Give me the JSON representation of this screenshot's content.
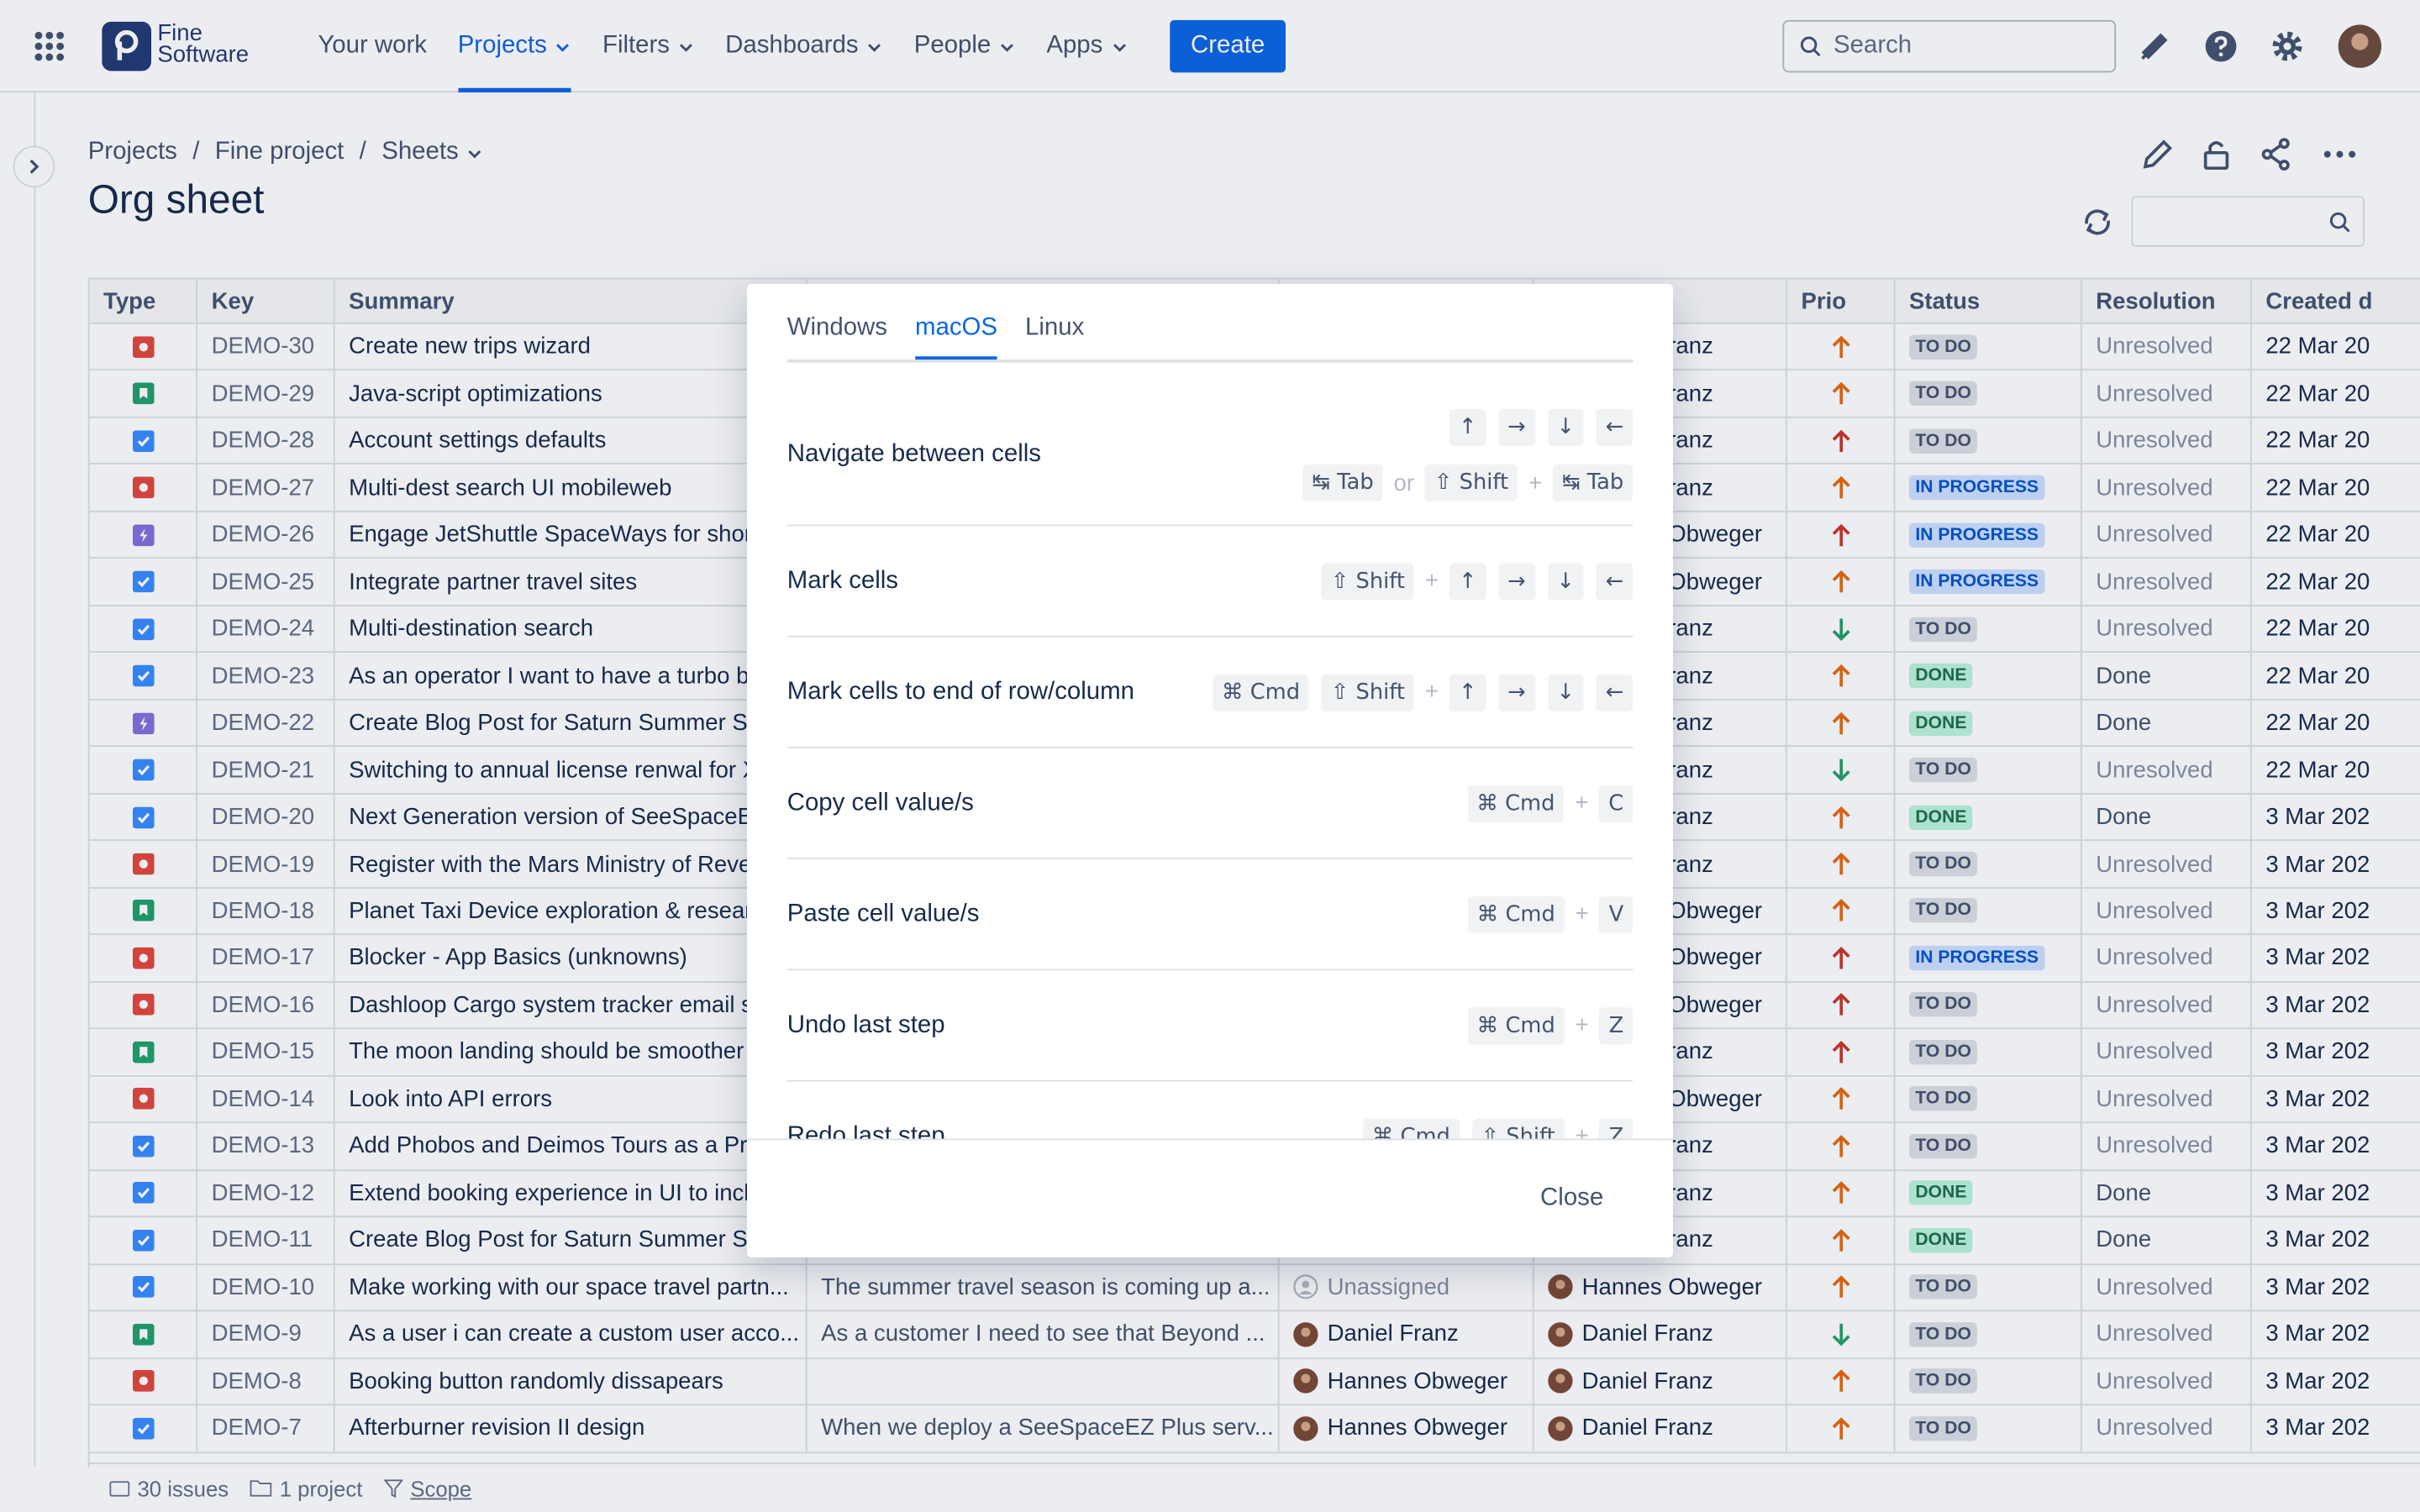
{
  "nav": {
    "logo": {
      "line1": "Fine",
      "line2": "Software"
    },
    "items": [
      "Your work",
      "Projects",
      "Filters",
      "Dashboards",
      "People",
      "Apps"
    ],
    "active": 1,
    "create": "Create",
    "search": "Search"
  },
  "breadcrumbs": [
    "Projects",
    "Fine project",
    "Sheets"
  ],
  "breadcrumb_separator": "/",
  "title": "Org sheet",
  "table": {
    "headers": {
      "type": "Type",
      "key": "Key",
      "summary": "Summary",
      "prio": "Prio",
      "status": "Status",
      "resolution": "Resolution",
      "created": "Created d"
    },
    "rows": [
      {
        "key": "DEMO-30",
        "type": "bug",
        "summary": "Create new trips wizard",
        "reporter": "Daniel Franz",
        "prio": "medium",
        "status": "TO DO",
        "resolution": "Unresolved",
        "created": "22 Mar 20"
      },
      {
        "key": "DEMO-29",
        "type": "story",
        "summary": "Java-script optimizations",
        "reporter": "Daniel Franz",
        "prio": "medium",
        "status": "TO DO",
        "resolution": "Unresolved",
        "created": "22 Mar 20"
      },
      {
        "key": "DEMO-28",
        "type": "task",
        "summary": "Account settings defaults",
        "reporter": "Daniel Franz",
        "prio": "high",
        "status": "TO DO",
        "resolution": "Unresolved",
        "created": "22 Mar 20"
      },
      {
        "key": "DEMO-27",
        "type": "bug",
        "summary": "Multi-dest search UI mobileweb",
        "reporter": "Daniel Franz",
        "prio": "medium",
        "status": "IN PROGRESS",
        "resolution": "Unresolved",
        "created": "22 Mar 20"
      },
      {
        "key": "DEMO-26",
        "type": "epic",
        "summary": "Engage JetShuttle SpaceWays for short",
        "reporter": "Hannes Obweger",
        "prio": "high",
        "status": "IN PROGRESS",
        "resolution": "Unresolved",
        "created": "22 Mar 20"
      },
      {
        "key": "DEMO-25",
        "type": "task",
        "summary": "Integrate partner travel sites",
        "reporter": "Hannes Obweger",
        "prio": "medium",
        "status": "IN PROGRESS",
        "resolution": "Unresolved",
        "created": "22 Mar 20"
      },
      {
        "key": "DEMO-24",
        "type": "task",
        "summary": "Multi-destination search",
        "reporter": "Daniel Franz",
        "prio": "low",
        "status": "TO DO",
        "resolution": "Unresolved",
        "created": "22 Mar 20"
      },
      {
        "key": "DEMO-23",
        "type": "task",
        "summary": "As an operator I want to have a turbo bu",
        "reporter": "Daniel Franz",
        "prio": "medium",
        "status": "DONE",
        "resolution": "Done",
        "created": "22 Mar 20"
      },
      {
        "key": "DEMO-22",
        "type": "epic",
        "summary": "Create Blog Post for Saturn Summer Sa",
        "reporter": "Daniel Franz",
        "prio": "medium",
        "status": "DONE",
        "resolution": "Done",
        "created": "22 Mar 20"
      },
      {
        "key": "DEMO-21",
        "type": "task",
        "summary": "Switching to annual license renwal for X",
        "reporter": "Daniel Franz",
        "prio": "low",
        "status": "TO DO",
        "resolution": "Unresolved",
        "created": "22 Mar 20"
      },
      {
        "key": "DEMO-20",
        "type": "task",
        "summary": "Next Generation version of SeeSpaceEZ",
        "reporter": "Daniel Franz",
        "prio": "medium",
        "status": "DONE",
        "resolution": "Done",
        "created": "3 Mar 202"
      },
      {
        "key": "DEMO-19",
        "type": "bug",
        "summary": "Register with the Mars Ministry of Reve",
        "reporter": "Daniel Franz",
        "prio": "medium",
        "status": "TO DO",
        "resolution": "Unresolved",
        "created": "3 Mar 202"
      },
      {
        "key": "DEMO-18",
        "type": "story",
        "summary": "Planet Taxi Device exploration & researc",
        "reporter": "Hannes Obweger",
        "prio": "medium",
        "status": "TO DO",
        "resolution": "Unresolved",
        "created": "3 Mar 202"
      },
      {
        "key": "DEMO-17",
        "type": "bug",
        "summary": "Blocker - App Basics (unknowns)",
        "reporter": "Hannes Obweger",
        "prio": "high",
        "status": "IN PROGRESS",
        "resolution": "Unresolved",
        "created": "3 Mar 202"
      },
      {
        "key": "DEMO-16",
        "type": "bug",
        "summary": "Dashloop Cargo system tracker email s",
        "reporter": "Hannes Obweger",
        "prio": "high",
        "status": "TO DO",
        "resolution": "Unresolved",
        "created": "3 Mar 202"
      },
      {
        "key": "DEMO-15",
        "type": "story",
        "summary": "The moon landing should be smoother",
        "reporter": "Daniel Franz",
        "prio": "high",
        "status": "TO DO",
        "resolution": "Unresolved",
        "created": "3 Mar 202"
      },
      {
        "key": "DEMO-14",
        "type": "bug",
        "summary": "Look into API errors",
        "reporter": "Hannes Obweger",
        "prio": "medium",
        "status": "TO DO",
        "resolution": "Unresolved",
        "created": "3 Mar 202"
      },
      {
        "key": "DEMO-13",
        "type": "task",
        "summary": "Add Phobos and Deimos Tours as a Pre",
        "reporter": "Daniel Franz",
        "prio": "medium",
        "status": "TO DO",
        "resolution": "Unresolved",
        "created": "3 Mar 202"
      },
      {
        "key": "DEMO-12",
        "type": "task",
        "summary": "Extend booking experience in UI to inclu",
        "reporter": "Daniel Franz",
        "prio": "medium",
        "status": "DONE",
        "resolution": "Done",
        "created": "3 Mar 202"
      },
      {
        "key": "DEMO-11",
        "type": "task",
        "summary": "Create Blog Post for Saturn Summer Sa",
        "reporter": "Daniel Franz",
        "prio": "medium",
        "status": "DONE",
        "resolution": "Done",
        "created": "3 Mar 202"
      },
      {
        "key": "DEMO-10",
        "type": "task",
        "summary": "Make working with our space travel partn...",
        "description": "The summer travel season is coming up a...",
        "assignee": "Unassigned",
        "reporter": "Hannes Obweger",
        "prio": "medium",
        "status": "TO DO",
        "resolution": "Unresolved",
        "created": "3 Mar 202"
      },
      {
        "key": "DEMO-9",
        "type": "story",
        "summary": "As a user i can create a custom user acco...",
        "description": "As a customer I need to see that Beyond ...",
        "assignee": "Daniel Franz",
        "reporter": "Daniel Franz",
        "prio": "low",
        "status": "TO DO",
        "resolution": "Unresolved",
        "created": "3 Mar 202"
      },
      {
        "key": "DEMO-8",
        "type": "bug",
        "summary": "Booking button randomly dissapears",
        "assignee": "Hannes Obweger",
        "reporter": "Daniel Franz",
        "prio": "medium",
        "status": "TO DO",
        "resolution": "Unresolved",
        "created": "3 Mar 202"
      },
      {
        "key": "DEMO-7",
        "type": "task",
        "summary": "Afterburner revision II design",
        "description": "When we deploy a SeeSpaceEZ Plus serv...",
        "assignee": "Hannes Obweger",
        "reporter": "Daniel Franz",
        "prio": "medium",
        "status": "TO DO",
        "resolution": "Unresolved",
        "created": "3 Mar 202"
      }
    ]
  },
  "footer": {
    "issues": "30 issues",
    "projects": "1 project",
    "scope": "Scope"
  },
  "modal": {
    "tabs": [
      "Windows",
      "macOS",
      "Linux"
    ],
    "active_tab": 1,
    "or": "or",
    "plus": "+",
    "close": "Close",
    "shortcuts": [
      {
        "label": "Navigate between cells",
        "lines": [
          [
            [
              [
                "↑",
                "→",
                "↓",
                "←"
              ]
            ]
          ],
          [
            [
              [
                "↹ Tab"
              ]
            ],
            [
              [
                "⇧ Shift"
              ],
              [
                "↹ Tab"
              ]
            ]
          ]
        ]
      },
      {
        "label": "Mark cells",
        "lines": [
          [
            [
              [
                "⇧ Shift"
              ],
              [
                "↑",
                "→",
                "↓",
                "←"
              ]
            ]
          ]
        ]
      },
      {
        "label": "Mark cells to end of row/column",
        "lines": [
          [
            [
              [
                "⌘ Cmd",
                "⇧ Shift"
              ],
              [
                "↑",
                "→",
                "↓",
                "←"
              ]
            ]
          ]
        ]
      },
      {
        "label": "Copy cell value/s",
        "lines": [
          [
            [
              [
                "⌘ Cmd"
              ],
              [
                "C"
              ]
            ]
          ]
        ]
      },
      {
        "label": "Paste cell value/s",
        "lines": [
          [
            [
              [
                "⌘ Cmd"
              ],
              [
                "V"
              ]
            ]
          ]
        ]
      },
      {
        "label": "Undo last step",
        "lines": [
          [
            [
              [
                "⌘ Cmd"
              ],
              [
                "Z"
              ]
            ]
          ]
        ]
      },
      {
        "label": "Redo last step",
        "lines": [
          [
            [
              [
                "⌘ Cmd",
                "⇧ Shift"
              ],
              [
                "Z"
              ]
            ]
          ]
        ]
      }
    ]
  }
}
